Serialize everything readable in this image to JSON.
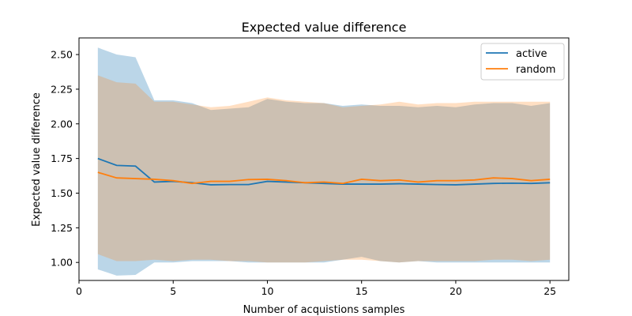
{
  "chart_data": {
    "type": "line",
    "title": "Expected value difference",
    "xlabel": "Number of acquistions samples",
    "ylabel": "Expected value difference",
    "xlim": [
      0,
      26
    ],
    "ylim": [
      0.87,
      2.62
    ],
    "xticks": [
      0,
      5,
      10,
      15,
      20,
      25
    ],
    "xtick_labels": [
      "0",
      "5",
      "10",
      "15",
      "20",
      "25"
    ],
    "yticks": [
      1.0,
      1.25,
      1.5,
      1.75,
      2.0,
      2.25,
      2.5
    ],
    "ytick_labels": [
      "1.00",
      "1.25",
      "1.50",
      "1.75",
      "2.00",
      "2.25",
      "2.50"
    ],
    "grid": false,
    "legend_position": "top-right",
    "x": [
      1,
      2,
      3,
      4,
      5,
      6,
      7,
      8,
      9,
      10,
      11,
      12,
      13,
      14,
      15,
      16,
      17,
      18,
      19,
      20,
      21,
      22,
      23,
      24,
      25
    ],
    "series": [
      {
        "name": "active",
        "color": "#1f77b4",
        "values": [
          1.75,
          1.7,
          1.695,
          1.58,
          1.585,
          1.575,
          1.56,
          1.562,
          1.562,
          1.585,
          1.58,
          1.575,
          1.57,
          1.565,
          1.565,
          1.565,
          1.568,
          1.565,
          1.562,
          1.56,
          1.565,
          1.57,
          1.572,
          1.57,
          1.575
        ],
        "upper": [
          2.55,
          2.5,
          2.48,
          2.17,
          2.17,
          2.15,
          2.1,
          2.11,
          2.12,
          2.18,
          2.16,
          2.15,
          2.15,
          2.13,
          2.14,
          2.13,
          2.13,
          2.12,
          2.13,
          2.12,
          2.14,
          2.15,
          2.15,
          2.13,
          2.15
        ],
        "lower": [
          0.95,
          0.905,
          0.91,
          1.0,
          1.0,
          1.01,
          1.01,
          1.01,
          1.0,
          1.0,
          1.0,
          1.0,
          1.0,
          1.02,
          1.04,
          1.01,
          1.0,
          1.01,
          1.0,
          1.0,
          1.0,
          1.0,
          1.0,
          1.0,
          1.0
        ]
      },
      {
        "name": "random",
        "color": "#ff7f0e",
        "values": [
          1.65,
          1.61,
          1.605,
          1.6,
          1.59,
          1.57,
          1.585,
          1.585,
          1.598,
          1.6,
          1.59,
          1.575,
          1.58,
          1.57,
          1.6,
          1.59,
          1.595,
          1.58,
          1.59,
          1.59,
          1.595,
          1.61,
          1.605,
          1.59,
          1.6
        ],
        "upper": [
          2.35,
          2.3,
          2.29,
          2.16,
          2.16,
          2.14,
          2.12,
          2.13,
          2.16,
          2.19,
          2.17,
          2.16,
          2.15,
          2.12,
          2.13,
          2.14,
          2.16,
          2.14,
          2.15,
          2.15,
          2.16,
          2.16,
          2.16,
          2.16,
          2.16
        ],
        "lower": [
          1.06,
          1.01,
          1.01,
          1.02,
          1.01,
          1.02,
          1.02,
          1.01,
          1.01,
          1.0,
          1.0,
          1.0,
          1.01,
          1.02,
          1.02,
          1.01,
          1.0,
          1.01,
          1.01,
          1.01,
          1.01,
          1.02,
          1.02,
          1.01,
          1.02
        ]
      }
    ]
  }
}
